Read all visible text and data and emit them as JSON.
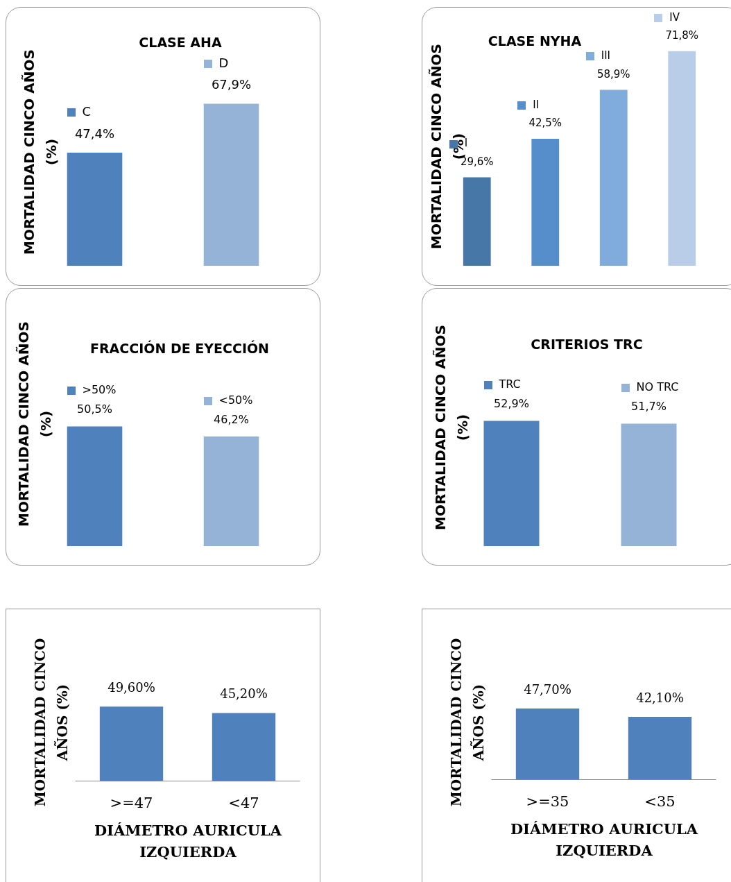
{
  "chart_data": [
    {
      "type": "bar",
      "title": "CLASE AHA",
      "ylabel": "MORTALIDAD CINCO AÑOS (%)",
      "categories": [
        null,
        null
      ],
      "values": [
        47.4,
        67.9
      ],
      "colors": [
        "#4f81bd",
        "#95b3d7"
      ],
      "value_labels": [
        "47,4%",
        "67,9%"
      ],
      "annotations": [
        "C",
        "D"
      ],
      "tick_labels": false
    },
    {
      "type": "bar",
      "title": "CLASE NYHA",
      "ylabel": "MORTALIDAD CINCO AÑOS (%)",
      "categories": [
        null,
        null,
        null,
        null
      ],
      "values": [
        29.6,
        42.5,
        58.9,
        71.8
      ],
      "colors": [
        "#4677a6",
        "#558ecb",
        "#80acdc",
        "#b9cde9"
      ],
      "value_labels": [
        "29,6%",
        "42,5%",
        "58,9%",
        "71,8%"
      ],
      "annotations": [
        "I",
        "II",
        "III",
        "IV"
      ],
      "tick_labels": false
    },
    {
      "type": "bar",
      "title": "FRACCIÓN DE EYECCIÓN",
      "ylabel": "MORTALIDAD CINCO AÑOS (%)",
      "categories": [
        null,
        null
      ],
      "values": [
        50.5,
        46.2
      ],
      "colors": [
        "#4f81bd",
        "#95b3d7"
      ],
      "value_labels": [
        "50,5%",
        "46,2%"
      ],
      "annotations": [
        ">50%",
        "<50%"
      ],
      "tick_labels": false
    },
    {
      "type": "bar",
      "title": "CRITERIOS TRC",
      "ylabel": "MORTALIDAD CINCO AÑOS (%)",
      "categories": [
        null,
        null
      ],
      "values": [
        52.9,
        51.7
      ],
      "colors": [
        "#4f81bd",
        "#95b3d7"
      ],
      "value_labels": [
        "52,9%",
        "51,7%"
      ],
      "annotations": [
        "TRC",
        "NO TRC"
      ],
      "tick_labels": false
    },
    {
      "type": "bar",
      "xlabel": "DIÁMETRO AURICULA IZQUIERDA",
      "ylabel": "MORTALIDAD CINCO AÑOS (%)",
      "categories": [
        ">=47",
        "<47"
      ],
      "values": [
        49.6,
        45.2
      ],
      "colors": [
        "#4f81bd",
        "#4f81bd"
      ],
      "value_labels": [
        "49,60%",
        "45,20%"
      ],
      "tick_labels": "x"
    },
    {
      "type": "bar",
      "xlabel": "DIÁMETRO AURICULA IZQUIERDA",
      "ylabel": "MORTALIDAD CINCO AÑOS (%)",
      "categories": [
        ">=35",
        "<35"
      ],
      "values": [
        47.7,
        42.1
      ],
      "colors": [
        "#4f81bd",
        "#4f81bd"
      ],
      "value_labels": [
        "47,70%",
        "42,10%"
      ],
      "tick_labels": "x"
    }
  ]
}
